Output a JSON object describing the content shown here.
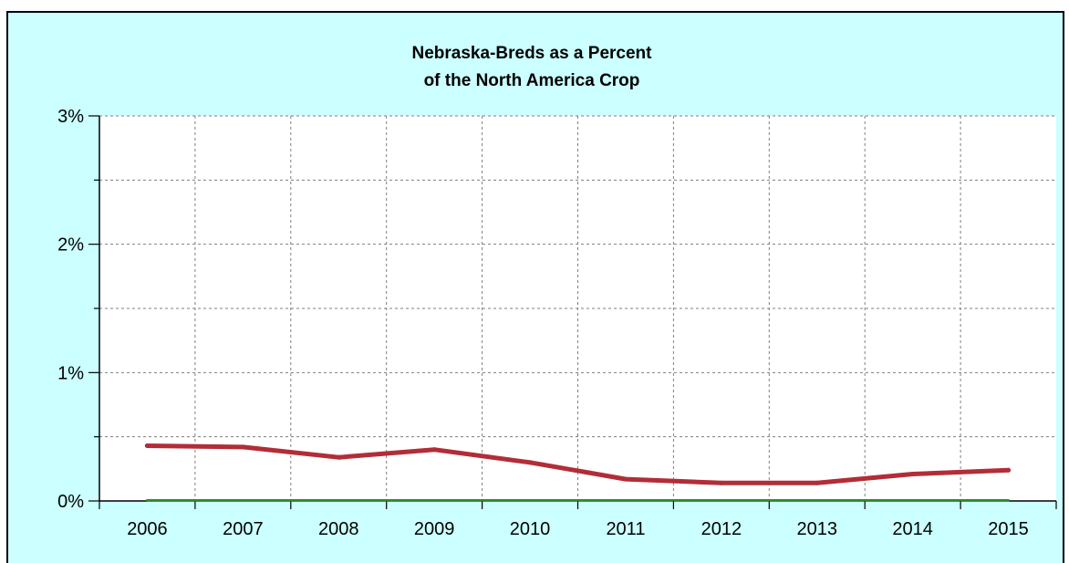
{
  "chart_data": {
    "type": "line",
    "title": "Nebraska-Breds as a Percent",
    "subtitle": "of the North America Crop",
    "xlabel": "",
    "ylabel": "",
    "categories": [
      "2006",
      "2007",
      "2008",
      "2009",
      "2010",
      "2011",
      "2012",
      "2013",
      "2014",
      "2015"
    ],
    "y_ticks": [
      "0%",
      "1%",
      "2%",
      "3%"
    ],
    "ylim": [
      0,
      3
    ],
    "grid": true,
    "series": [
      {
        "values": [
          0.43,
          0.42,
          0.34,
          0.4,
          0.3,
          0.17,
          0.14,
          0.14,
          0.21,
          0.24
        ],
        "color": "#b22d38"
      },
      {
        "values": [
          0.005,
          0.005,
          0.005,
          0.005,
          0.005,
          0.005,
          0.005,
          0.005,
          0.005,
          0.005
        ],
        "color": "#2e8b2e"
      }
    ],
    "colors": {
      "background": "#ccffff",
      "plot_area": "#ffffff",
      "grid": "#7f7f7f",
      "axis": "#000000"
    }
  }
}
